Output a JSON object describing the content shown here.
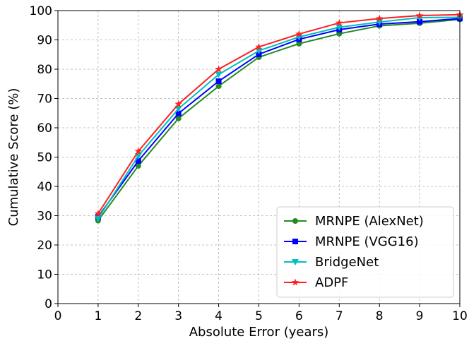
{
  "chart_data": {
    "type": "line",
    "title": "",
    "xlabel": "Absolute Error (years)",
    "ylabel": "Cumulative Score (%)",
    "xlim": [
      0,
      10
    ],
    "ylim": [
      0,
      100
    ],
    "xticks": [
      "0",
      "1",
      "2",
      "3",
      "4",
      "5",
      "6",
      "7",
      "8",
      "9",
      "10"
    ],
    "yticks": [
      "0",
      "10",
      "20",
      "30",
      "40",
      "50",
      "60",
      "70",
      "80",
      "90",
      "100"
    ],
    "grid": true,
    "legend_position": "bottom-right",
    "x": [
      1,
      2,
      3,
      4,
      5,
      6,
      7,
      8,
      9,
      10
    ],
    "series": [
      {
        "name": "MRNPE (AlexNet)",
        "color": "#228b22",
        "marker": "circle",
        "values": [
          28.3,
          47,
          63.2,
          74.2,
          84.1,
          88.7,
          92.1,
          94.8,
          95.7,
          97.0
        ]
      },
      {
        "name": "MRNPE (VGG16)",
        "color": "#0000ff",
        "marker": "square",
        "values": [
          29.6,
          48.7,
          64.9,
          75.9,
          85.1,
          90.2,
          93.5,
          95.4,
          96.2,
          97.3
        ]
      },
      {
        "name": "BridgeNet",
        "color": "#00c0c0",
        "marker": "triangle-down",
        "values": [
          29.0,
          50.4,
          66.5,
          78.2,
          86.3,
          91.0,
          94.3,
          96.1,
          97.6,
          97.7
        ]
      },
      {
        "name": "ADPF",
        "color": "#ff2020",
        "marker": "star",
        "values": [
          30.7,
          52.0,
          68.1,
          80.0,
          87.6,
          92.0,
          95.8,
          97.3,
          98.3,
          98.6
        ]
      }
    ]
  }
}
